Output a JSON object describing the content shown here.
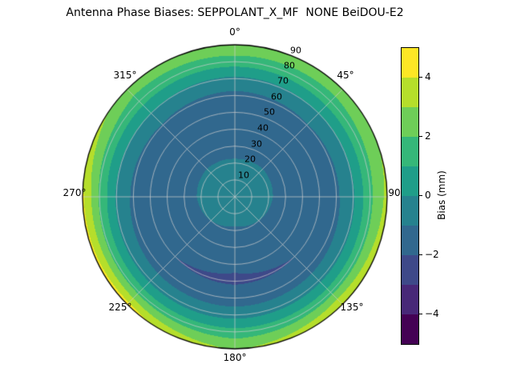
{
  "title": "Antenna Phase Biases: SEPPOLANT_X_MF  NONE BeiDOU-E2",
  "chart_data": {
    "type": "heatmap",
    "projection": "polar",
    "theta_zero_location": "top",
    "theta_direction": "clockwise",
    "theta_tick_labels": [
      "0°",
      "45°",
      "90",
      "135°",
      "180°",
      "225°",
      "270°",
      "315°"
    ],
    "r_tick_labels": [
      "10",
      "20",
      "30",
      "40",
      "50",
      "60",
      "70",
      "80",
      "90"
    ],
    "r_axis": {
      "min": 0,
      "max": 90,
      "label_angle_deg": 22.5
    },
    "colorbar": {
      "label": "Bias (mm)",
      "tick_labels": [
        "4",
        "2",
        "0",
        "−2",
        "−4"
      ],
      "tick_values": [
        4,
        2,
        0,
        -2,
        -4
      ],
      "vmin": -5,
      "vmax": 5,
      "n_levels": 10
    },
    "colormap_name": "viridis",
    "colormap": [
      "#440154",
      "#482878",
      "#3e4989",
      "#31688e",
      "#26828e",
      "#1f9e89",
      "#35b779",
      "#6ece58",
      "#b5de2b",
      "#fde725"
    ],
    "grid": {
      "circle_color": "rgba(205,205,205,0.9)",
      "spoke_step_deg": 45,
      "ring_step": 10,
      "outline_color": "#000000"
    },
    "values": {
      "azimuth_deg": [
        0,
        45,
        90,
        135,
        180,
        225,
        270,
        315
      ],
      "zenith_deg": [
        0,
        10,
        20,
        30,
        40,
        50,
        60,
        70,
        80,
        90
      ],
      "bias_mm": [
        [
          -0.5,
          -0.6,
          -0.9,
          -1.3,
          -1.7,
          -1.8,
          -1.3,
          -0.2,
          1.5,
          2.9
        ],
        [
          -0.5,
          -0.6,
          -0.9,
          -1.2,
          -1.5,
          -1.6,
          -1.1,
          0.0,
          1.6,
          2.6
        ],
        [
          -0.5,
          -0.6,
          -0.9,
          -1.3,
          -1.6,
          -1.7,
          -1.2,
          -0.1,
          1.8,
          3.3
        ],
        [
          -0.5,
          -0.7,
          -1.0,
          -1.4,
          -1.8,
          -2.0,
          -1.5,
          -0.3,
          1.6,
          4.1
        ],
        [
          -0.5,
          -0.7,
          -1.1,
          -1.5,
          -1.9,
          -2.1,
          -1.6,
          -0.4,
          1.4,
          2.9
        ],
        [
          -0.5,
          -0.7,
          -1.0,
          -1.4,
          -1.8,
          -2.0,
          -1.5,
          -0.3,
          1.7,
          4.4
        ],
        [
          -0.5,
          -0.6,
          -0.9,
          -1.3,
          -1.6,
          -1.7,
          -1.2,
          -0.1,
          1.9,
          4.2
        ],
        [
          -0.5,
          -0.6,
          -0.9,
          -1.2,
          -1.5,
          -1.6,
          -1.1,
          0.0,
          1.5,
          2.6
        ]
      ]
    }
  }
}
